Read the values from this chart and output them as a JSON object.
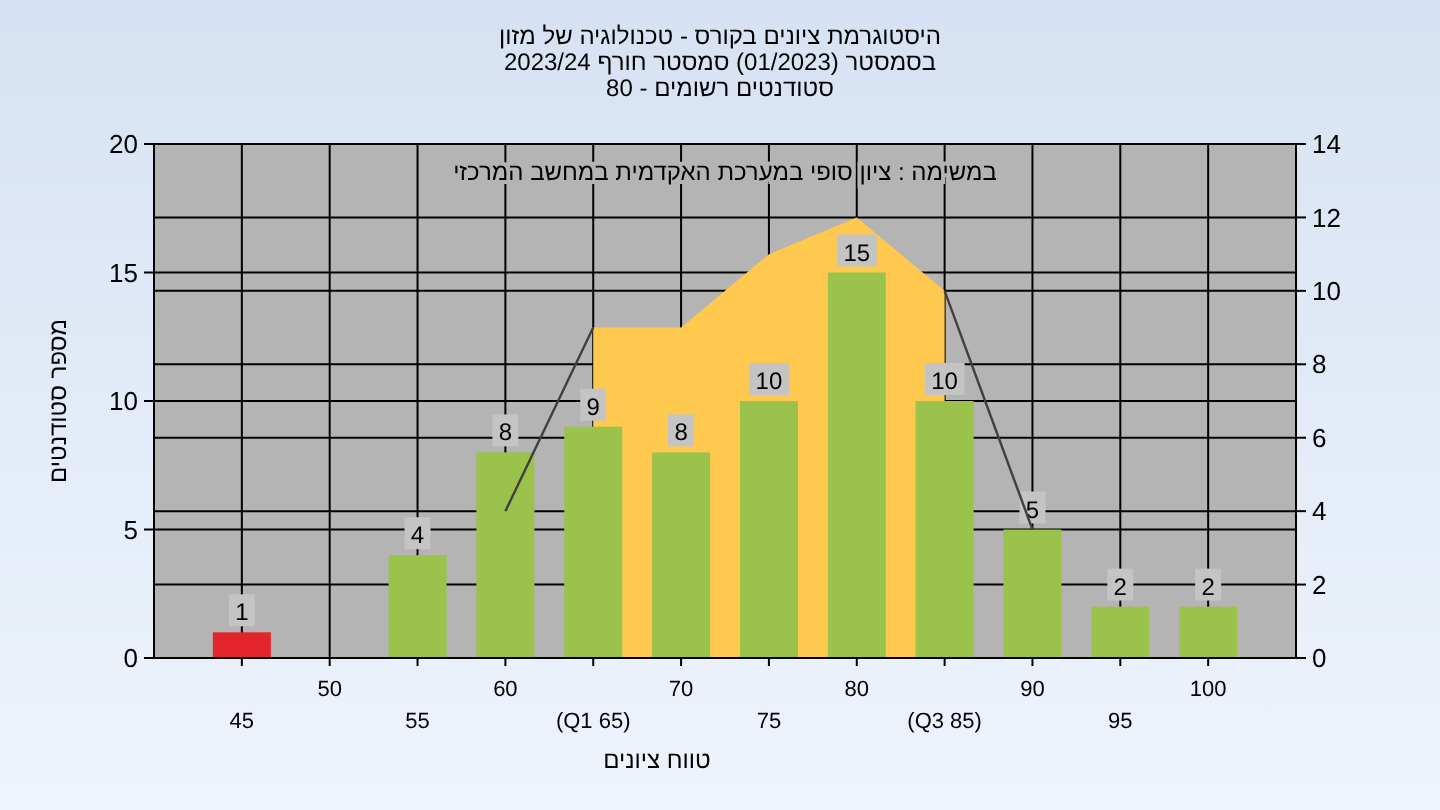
{
  "chart_data": {
    "type": "bar",
    "title": "היסטוגרמת ציונים בקורס - טכנולוגיה של מזון",
    "subtitle": "בסמסטר  (01/2023)  סמסטר חורף  2023/24\nסטודנטים רשומים - 80",
    "xlabel": "טווח ציונים",
    "ylabel": "מספר סטודנטים",
    "annotations": [
      "במשימה : ציון סופי במערכת האקדמית במחשב המרכזי"
    ],
    "categories": [
      "45",
      "50",
      "55",
      "60",
      "(Q1 65)",
      "70",
      "75",
      "80",
      "(Q3 85)",
      "90",
      "95",
      "100"
    ],
    "series": [
      {
        "value_labels": [
          "1",
          null,
          "4",
          "8",
          "9",
          "8",
          "10",
          "15",
          "10",
          "5",
          "2",
          "2"
        ],
        "colors": [
          "#e0262a",
          "#9bc24a",
          "#9bc24a",
          "#9bc24a",
          "#9bc24a",
          "#9bc24a",
          "#9bc24a",
          "#9bc24a",
          "#9bc24a",
          "#9bc24a",
          "#9bc24a",
          "#9bc24a"
        ],
        "values": [
          1,
          0,
          4,
          8,
          9,
          8,
          10,
          15,
          10,
          5,
          2,
          2
        ]
      },
      {
        "type": "area",
        "axis": "y2",
        "color": "#ffc94f",
        "values": [
          null,
          null,
          null,
          null,
          9,
          9,
          11,
          12,
          10,
          null,
          null,
          null
        ]
      },
      {
        "type": "line",
        "axis": "y2",
        "color": "#404040",
        "values": [
          null,
          null,
          null,
          4,
          9,
          null,
          null,
          null,
          10,
          3.5,
          null,
          null
        ]
      }
    ],
    "ylim": [
      0,
      20
    ],
    "yticks": [
      0,
      5,
      10,
      15,
      20
    ],
    "y2lim": [
      0,
      14
    ],
    "y2ticks": [
      0,
      2,
      4,
      6,
      8,
      10,
      12,
      14
    ],
    "grid": true
  }
}
